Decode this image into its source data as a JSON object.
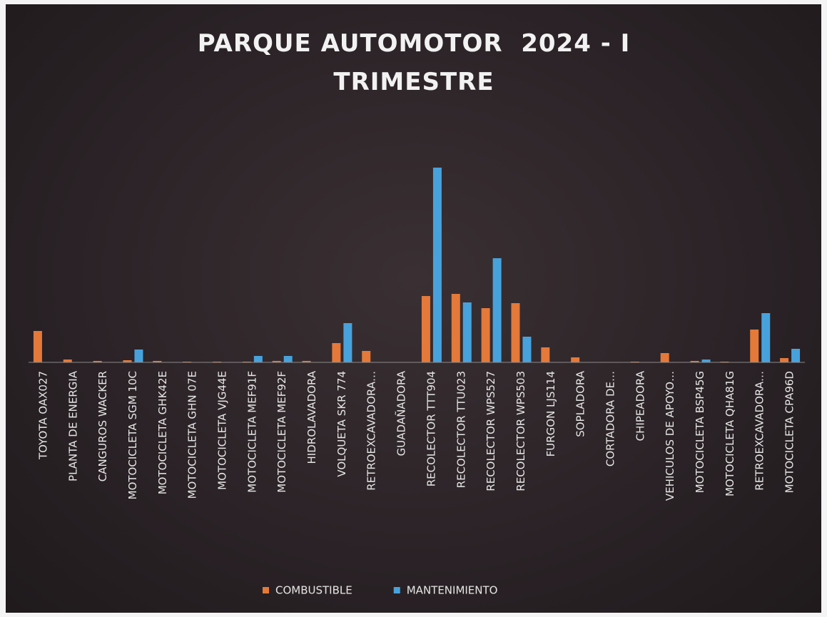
{
  "chart_data": {
    "type": "bar",
    "title": "PARQUE AUTOMOTOR  2024 - I TRIMESTRE",
    "categories": [
      "TOYOTA OAX027",
      "PLANTA DE ENERGIA",
      "CANGUROS WACKER",
      "MOTOCICLETA SGM 10C",
      "MOTOCICLETA GHK42E",
      "MOTOCICLETA GHN 07E",
      "MOTOCICLETA VJG44E",
      "MOTOCICLETA MEF91F",
      "MOTOCICLETA MEF92F",
      "HIDROLAVADORA",
      "VOLQUETA SKR 774",
      "RETROEXCAVADORA…",
      "GUADAÑADORA",
      "RECOLECTOR TTT904",
      "RECOLECTOR TTU023",
      "RECOLECTOR WPS527",
      "RECOLECTOR WPS503",
      "FURGON LJS114",
      "SOPLADORA",
      "CORTADORA DE…",
      "CHIPEADORA",
      "VEHICULOS DE APOYO…",
      "MOTOCICLETA BSP45G",
      "MOTOCICLETA QHA81G",
      "RETROEXCAVADORA…",
      "MOTOCICLETA CPA96D"
    ],
    "series": [
      {
        "name": "COMBUSTIBLE",
        "color": "#e4793a",
        "values": [
          44,
          4,
          2,
          3,
          2,
          1,
          1,
          1,
          2,
          2,
          27,
          16,
          0,
          93,
          96,
          76,
          83,
          21,
          7,
          0,
          1,
          13,
          2,
          1,
          46,
          6
        ]
      },
      {
        "name": "MANTENIMIENTO",
        "color": "#47a2dc",
        "values": [
          0,
          0,
          0,
          18,
          0,
          0,
          0,
          9,
          9,
          0,
          55,
          0,
          0,
          273,
          84,
          146,
          36,
          0,
          0,
          0,
          0,
          0,
          4,
          0,
          69,
          19
        ]
      }
    ],
    "legend": "bottom"
  }
}
